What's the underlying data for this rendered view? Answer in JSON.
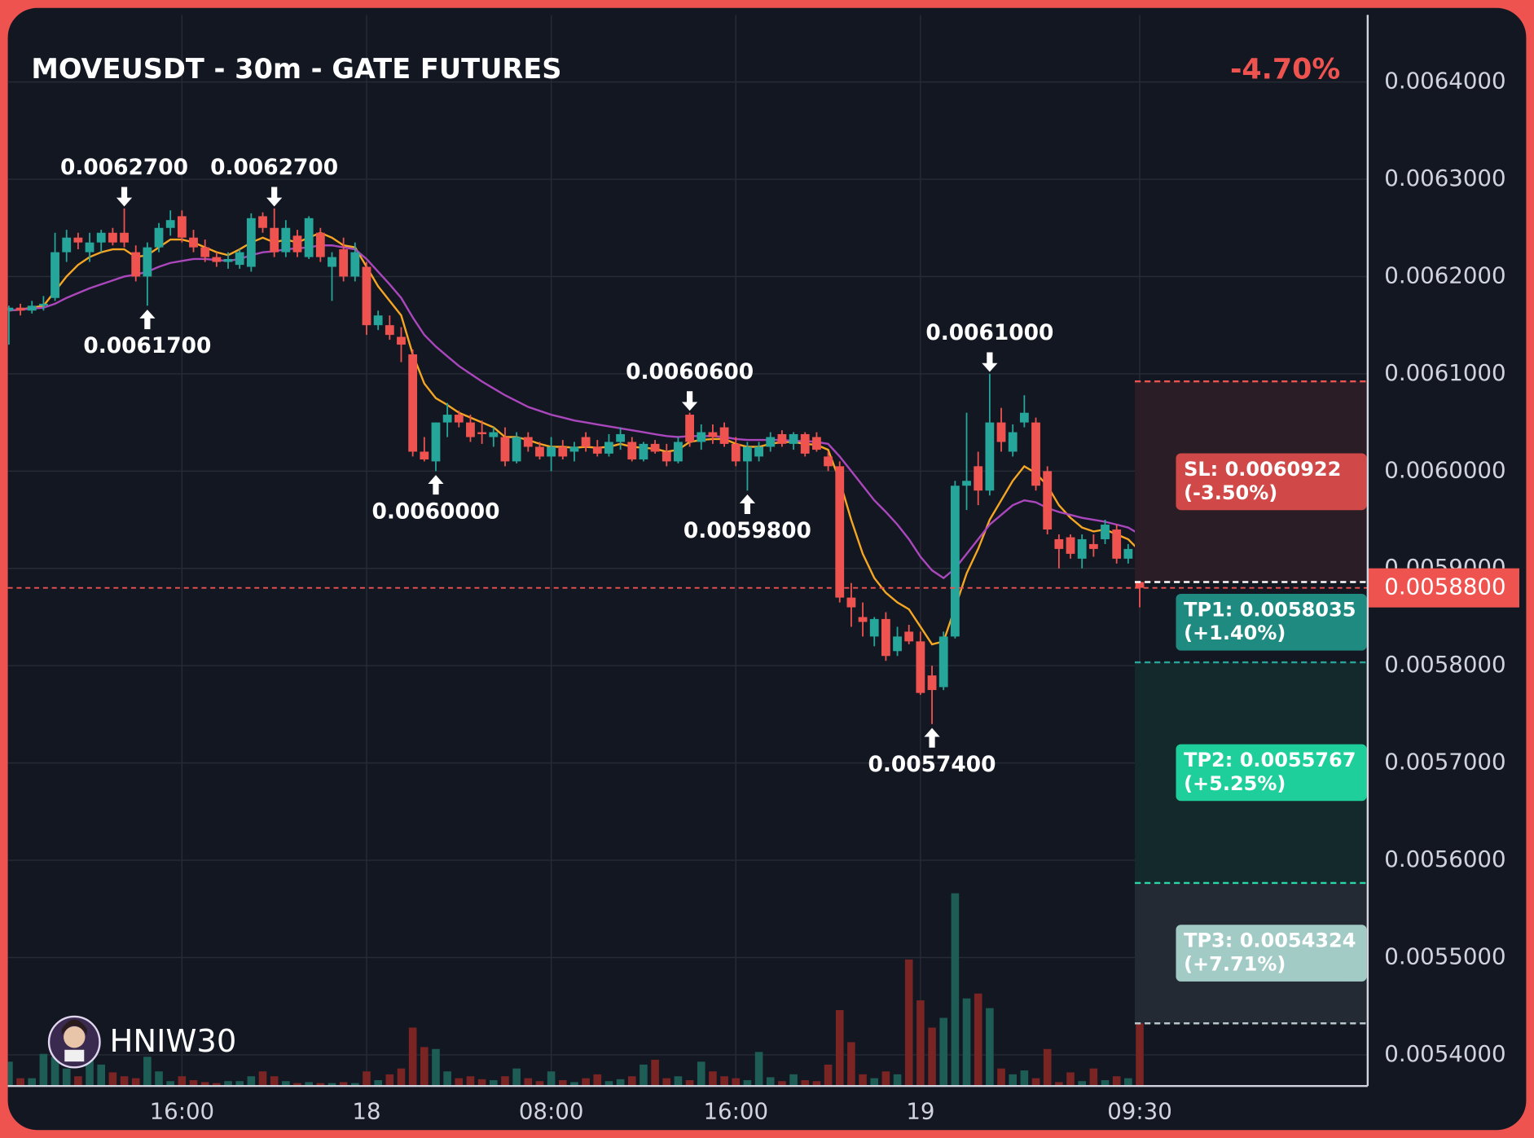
{
  "chart_data": {
    "type": "candlestick",
    "title": "MOVEUSDT - 30m - GATE FUTURES",
    "change": "-4.70%",
    "watermark": "HNIW30",
    "categories": [
      null,
      null,
      null,
      null,
      null,
      null,
      null,
      null,
      null,
      null,
      null,
      null,
      null,
      null,
      null,
      "16:00",
      null,
      null,
      null,
      null,
      null,
      null,
      null,
      null,
      null,
      null,
      null,
      null,
      null,
      null,
      null,
      "18",
      null,
      null,
      null,
      null,
      null,
      null,
      null,
      null,
      null,
      null,
      null,
      null,
      null,
      null,
      null,
      "08:00",
      null,
      null,
      null,
      null,
      null,
      null,
      null,
      null,
      null,
      null,
      null,
      null,
      null,
      null,
      null,
      "16:00",
      null,
      null,
      null,
      null,
      null,
      null,
      null,
      null,
      null,
      null,
      null,
      null,
      null,
      null,
      null,
      "19",
      null,
      null,
      null,
      null,
      null,
      null,
      null,
      null,
      null,
      null,
      null,
      null,
      null,
      null,
      null,
      null,
      null,
      null,
      "09:30"
    ],
    "ohlc": [
      [
        0.006165,
        0.00617,
        0.00613,
        0.006168
      ],
      [
        0.006168,
        0.006172,
        0.00616,
        0.006165
      ],
      [
        0.006165,
        0.006175,
        0.006162,
        0.00617
      ],
      [
        0.00617,
        0.00618,
        0.006165,
        0.006172
      ],
      [
        0.006178,
        0.006245,
        0.006175,
        0.006225
      ],
      [
        0.006225,
        0.006248,
        0.006215,
        0.00624
      ],
      [
        0.00624,
        0.006245,
        0.006228,
        0.006235
      ],
      [
        0.006225,
        0.006245,
        0.006215,
        0.006235
      ],
      [
        0.006235,
        0.006248,
        0.006225,
        0.006245
      ],
      [
        0.006245,
        0.00625,
        0.006232,
        0.006235
      ],
      [
        0.006245,
        0.00627,
        0.00623,
        0.006235
      ],
      [
        0.006225,
        0.006232,
        0.006195,
        0.0062
      ],
      [
        0.0062,
        0.006235,
        0.00617,
        0.00623
      ],
      [
        0.00623,
        0.006255,
        0.006225,
        0.00625
      ],
      [
        0.00625,
        0.006268,
        0.006242,
        0.006258
      ],
      [
        0.006262,
        0.006268,
        0.006235,
        0.00624
      ],
      [
        0.00624,
        0.006248,
        0.006225,
        0.00623
      ],
      [
        0.00623,
        0.006238,
        0.006215,
        0.00622
      ],
      [
        0.00622,
        0.006225,
        0.00621,
        0.006215
      ],
      [
        0.006215,
        0.006225,
        0.006208,
        0.006218
      ],
      [
        0.006212,
        0.006228,
        0.006208,
        0.006225
      ],
      [
        0.00621,
        0.006265,
        0.006205,
        0.00626
      ],
      [
        0.006262,
        0.006266,
        0.006245,
        0.00625
      ],
      [
        0.00625,
        0.00627,
        0.00622,
        0.006225
      ],
      [
        0.006225,
        0.006258,
        0.00622,
        0.00625
      ],
      [
        0.006242,
        0.006248,
        0.00622,
        0.006225
      ],
      [
        0.00622,
        0.006262,
        0.006218,
        0.00626
      ],
      [
        0.006245,
        0.00625,
        0.006215,
        0.00622
      ],
      [
        0.00621,
        0.006225,
        0.006175,
        0.00622
      ],
      [
        0.006228,
        0.00624,
        0.006195,
        0.0062
      ],
      [
        0.0062,
        0.006235,
        0.006195,
        0.006225
      ],
      [
        0.00621,
        0.006215,
        0.00614,
        0.00615
      ],
      [
        0.00615,
        0.006165,
        0.006145,
        0.00616
      ],
      [
        0.00615,
        0.00616,
        0.006135,
        0.00614
      ],
      [
        0.006138,
        0.006148,
        0.006112,
        0.00613
      ],
      [
        0.00612,
        0.006125,
        0.006015,
        0.00602
      ],
      [
        0.00602,
        0.006035,
        0.00601,
        0.006012
      ],
      [
        0.00601,
        0.00605,
        0.006,
        0.00605
      ],
      [
        0.00605,
        0.00607,
        0.006035,
        0.006058
      ],
      [
        0.006058,
        0.006062,
        0.006045,
        0.00605
      ],
      [
        0.00605,
        0.006058,
        0.00603,
        0.006035
      ],
      [
        0.00604,
        0.006052,
        0.006028,
        0.006038
      ],
      [
        0.006035,
        0.006045,
        0.006025,
        0.00604
      ],
      [
        0.006035,
        0.006045,
        0.006005,
        0.00601
      ],
      [
        0.00601,
        0.00604,
        0.006008,
        0.006035
      ],
      [
        0.006035,
        0.00604,
        0.00602,
        0.006025
      ],
      [
        0.006025,
        0.00603,
        0.006012,
        0.006015
      ],
      [
        0.006015,
        0.006035,
        0.006,
        0.006025
      ],
      [
        0.006025,
        0.006032,
        0.006012,
        0.006015
      ],
      [
        0.00602,
        0.00603,
        0.00601,
        0.006025
      ],
      [
        0.006035,
        0.00604,
        0.00602,
        0.006025
      ],
      [
        0.006025,
        0.006032,
        0.006015,
        0.006018
      ],
      [
        0.006018,
        0.006038,
        0.006015,
        0.00603
      ],
      [
        0.00603,
        0.006045,
        0.006022,
        0.006038
      ],
      [
        0.00603,
        0.006035,
        0.00601,
        0.006012
      ],
      [
        0.006012,
        0.00603,
        0.00601,
        0.006028
      ],
      [
        0.006028,
        0.006032,
        0.006018,
        0.00602
      ],
      [
        0.00602,
        0.006028,
        0.006005,
        0.00601
      ],
      [
        0.00601,
        0.006035,
        0.006008,
        0.00603
      ],
      [
        0.006058,
        0.00606,
        0.006025,
        0.00603
      ],
      [
        0.00603,
        0.006048,
        0.006022,
        0.00604
      ],
      [
        0.00604,
        0.006048,
        0.006028,
        0.006035
      ],
      [
        0.006045,
        0.00605,
        0.006025,
        0.006028
      ],
      [
        0.006028,
        0.006035,
        0.006005,
        0.00601
      ],
      [
        0.00601,
        0.00603,
        0.00598,
        0.006025
      ],
      [
        0.006015,
        0.00603,
        0.00601,
        0.006025
      ],
      [
        0.006025,
        0.00604,
        0.00602,
        0.006035
      ],
      [
        0.006038,
        0.006042,
        0.006025,
        0.006028
      ],
      [
        0.006028,
        0.00604,
        0.006022,
        0.006038
      ],
      [
        0.006038,
        0.00604,
        0.006015,
        0.006018
      ],
      [
        0.006035,
        0.00604,
        0.00602,
        0.006022
      ],
      [
        0.006015,
        0.00602,
        0.006,
        0.006005
      ],
      [
        0.006005,
        0.00601,
        0.005865,
        0.00587
      ],
      [
        0.00587,
        0.005885,
        0.00584,
        0.00586
      ],
      [
        0.00585,
        0.005865,
        0.00583,
        0.005845
      ],
      [
        0.00583,
        0.00585,
        0.00582,
        0.005848
      ],
      [
        0.005848,
        0.005855,
        0.005805,
        0.00581
      ],
      [
        0.005815,
        0.00584,
        0.00581,
        0.00583
      ],
      [
        0.005835,
        0.005842,
        0.005822,
        0.005825
      ],
      [
        0.005825,
        0.005835,
        0.00577,
        0.005772
      ],
      [
        0.00579,
        0.0058,
        0.00574,
        0.005775
      ],
      [
        0.005778,
        0.005835,
        0.005775,
        0.00583
      ],
      [
        0.00583,
        0.00599,
        0.005828,
        0.005985
      ],
      [
        0.005985,
        0.00606,
        0.00596,
        0.00599
      ],
      [
        0.006005,
        0.00602,
        0.005965,
        0.00598
      ],
      [
        0.00598,
        0.0061,
        0.005975,
        0.00605
      ],
      [
        0.00605,
        0.006065,
        0.00602,
        0.00603
      ],
      [
        0.00602,
        0.006048,
        0.006015,
        0.00604
      ],
      [
        0.00605,
        0.006078,
        0.006045,
        0.00606
      ],
      [
        0.00605,
        0.006055,
        0.00598,
        0.005985
      ],
      [
        0.006,
        0.006005,
        0.005935,
        0.00594
      ],
      [
        0.00593,
        0.005935,
        0.0059,
        0.00592
      ],
      [
        0.005932,
        0.005935,
        0.00591,
        0.005915
      ],
      [
        0.00591,
        0.005935,
        0.0059,
        0.00593
      ],
      [
        0.005925,
        0.005935,
        0.005912,
        0.00592
      ],
      [
        0.00593,
        0.00595,
        0.005925,
        0.005945
      ],
      [
        0.00594,
        0.005945,
        0.005905,
        0.00591
      ],
      [
        0.00591,
        0.005925,
        0.005905,
        0.00592
      ],
      [
        0.005915,
        0.00592,
        0.00586,
        0.00588
      ]
    ],
    "ma": [
      {
        "color": "#f5a623",
        "values": [
          0.006165,
          0.006166,
          0.006168,
          0.00617,
          0.006185,
          0.0062,
          0.006212,
          0.00622,
          0.006225,
          0.006228,
          0.006228,
          0.00622,
          0.006222,
          0.00623,
          0.006238,
          0.006238,
          0.006235,
          0.00623,
          0.006225,
          0.006222,
          0.006228,
          0.006235,
          0.00624,
          0.006235,
          0.006238,
          0.006235,
          0.00624,
          0.006245,
          0.00624,
          0.006232,
          0.00623,
          0.00621,
          0.00619,
          0.006175,
          0.00616,
          0.00612,
          0.00609,
          0.006075,
          0.006068,
          0.00606,
          0.006055,
          0.00605,
          0.006045,
          0.006035,
          0.006035,
          0.006032,
          0.006028,
          0.006025,
          0.006025,
          0.006024,
          0.006025,
          0.006024,
          0.006025,
          0.006028,
          0.006025,
          0.006024,
          0.006023,
          0.00602,
          0.006022,
          0.00603,
          0.006032,
          0.006033,
          0.006033,
          0.006028,
          0.006025,
          0.006025,
          0.006028,
          0.00603,
          0.00603,
          0.006028,
          0.006027,
          0.006022,
          0.00599,
          0.00595,
          0.005915,
          0.00589,
          0.005875,
          0.005865,
          0.005858,
          0.00584,
          0.005822,
          0.005825,
          0.00586,
          0.005895,
          0.00592,
          0.00595,
          0.00597,
          0.00599,
          0.006005,
          0.005998,
          0.005985,
          0.005965,
          0.005952,
          0.005942,
          0.005938,
          0.00594,
          0.005935,
          0.00593,
          0.005918
        ]
      },
      {
        "color": "#ab47bc",
        "values": [
          0.006165,
          0.006166,
          0.006167,
          0.006168,
          0.006172,
          0.006178,
          0.006183,
          0.006188,
          0.006192,
          0.006196,
          0.0062,
          0.006202,
          0.006205,
          0.00621,
          0.006214,
          0.006216,
          0.006218,
          0.006218,
          0.006217,
          0.006216,
          0.006218,
          0.006222,
          0.006225,
          0.006226,
          0.006228,
          0.006229,
          0.00623,
          0.006232,
          0.006232,
          0.00623,
          0.006228,
          0.006218,
          0.006205,
          0.006192,
          0.006178,
          0.006158,
          0.00614,
          0.006128,
          0.006118,
          0.006108,
          0.0061,
          0.006092,
          0.006085,
          0.006078,
          0.006072,
          0.006066,
          0.006062,
          0.006058,
          0.006055,
          0.006052,
          0.00605,
          0.006048,
          0.006046,
          0.006044,
          0.006042,
          0.00604,
          0.006038,
          0.006036,
          0.006035,
          0.006036,
          0.006036,
          0.006036,
          0.006035,
          0.006033,
          0.006032,
          0.006032,
          0.006032,
          0.006032,
          0.006031,
          0.006031,
          0.00603,
          0.006028,
          0.006015,
          0.006,
          0.005985,
          0.00597,
          0.005958,
          0.005945,
          0.00593,
          0.005912,
          0.005898,
          0.00589,
          0.0059,
          0.005915,
          0.00593,
          0.005945,
          0.005955,
          0.005965,
          0.00597,
          0.005968,
          0.005962,
          0.005958,
          0.005955,
          0.005952,
          0.00595,
          0.005948,
          0.005945,
          0.005942,
          0.005935
        ]
      }
    ],
    "volume": [
      25,
      8,
      8,
      33,
      30,
      18,
      10,
      30,
      22,
      14,
      10,
      8,
      30,
      15,
      5,
      10,
      6,
      4,
      3,
      5,
      5,
      10,
      15,
      10,
      5,
      3,
      4,
      3,
      3,
      4,
      3,
      15,
      6,
      12,
      18,
      60,
      40,
      38,
      15,
      8,
      10,
      7,
      6,
      10,
      18,
      8,
      5,
      15,
      6,
      4,
      8,
      12,
      5,
      7,
      10,
      22,
      27,
      8,
      10,
      6,
      25,
      15,
      10,
      8,
      6,
      35,
      9,
      5,
      12,
      6,
      5,
      22,
      78,
      45,
      12,
      8,
      15,
      12,
      130,
      88,
      60,
      70,
      198,
      90,
      95,
      80,
      18,
      12,
      16,
      8,
      38,
      4,
      14,
      5,
      18,
      6,
      10,
      8,
      65
    ],
    "up_color": "#26a69a",
    "down_color": "#ef5350",
    "volume_up_color": "#1d5d56",
    "volume_down_color": "#7a2424",
    "ylim": [
      0.005368,
      0.006469
    ],
    "yticks": [
      {
        "value": 0.0054,
        "label": "0.0054000"
      },
      {
        "value": 0.0055,
        "label": "0.0055000"
      },
      {
        "value": 0.0056,
        "label": "0.0056000"
      },
      {
        "value": 0.0057,
        "label": "0.0057000"
      },
      {
        "value": 0.0058,
        "label": "0.0058000"
      },
      {
        "value": 0.0059,
        "label": "0.0059000"
      },
      {
        "value": 0.006,
        "label": "0.0060000"
      },
      {
        "value": 0.0061,
        "label": "0.0061000"
      },
      {
        "value": 0.0062,
        "label": "0.0062000"
      },
      {
        "value": 0.0063,
        "label": "0.0063000"
      },
      {
        "value": 0.0064,
        "label": "0.0064000"
      }
    ],
    "grid": true,
    "annotations": [
      {
        "candle": 10,
        "value": 0.00627,
        "label": "0.0062700"
      },
      {
        "candle": 23,
        "value": 0.00627,
        "label": "0.0062700"
      },
      {
        "candle": 12,
        "value": 0.00617,
        "label": "0.0061700"
      },
      {
        "candle": 37,
        "value": 0.006,
        "label": "0.0060000"
      },
      {
        "candle": 59,
        "value": 0.00606,
        "label": "0.0060600"
      },
      {
        "candle": 64,
        "value": 0.00598,
        "label": "0.0059800"
      },
      {
        "candle": 85,
        "value": 0.0061,
        "label": "0.0061000"
      },
      {
        "candle": 80,
        "value": 0.00574,
        "label": "0.0057400"
      }
    ],
    "entry": 0.005886,
    "levels": [
      {
        "label": "SL: 0.0060922",
        "change": "(-3.50%)",
        "value": 0.0060922,
        "color": "#d04848",
        "line_color": "#ef5350",
        "zone": "#2b1d25"
      },
      {
        "label": "TP1: 0.0058035",
        "change": "(+1.40%)",
        "value": 0.0058035,
        "color": "#1f8a80",
        "line_color": "#26a69a"
      },
      {
        "label": "TP2: 0.0055767",
        "change": "(+5.25%)",
        "value": 0.0055767,
        "color": "#1fcf9b",
        "line_color": "#2bd6a6",
        "zone": "#13292c"
      },
      {
        "label": "TP3: 0.0054324",
        "change": "(+7.71%)",
        "value": 0.0054324,
        "color": "#a3cbc6",
        "line_color": "#b7c6c8",
        "zone": "#232a33"
      }
    ],
    "last_price": {
      "value": 0.00588,
      "label": "0.0058800",
      "color": "#ef5350"
    }
  }
}
